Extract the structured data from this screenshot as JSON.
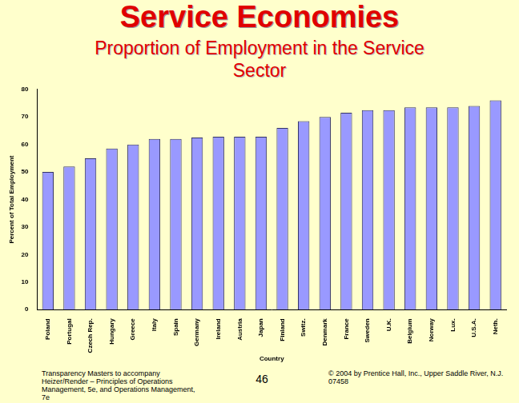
{
  "chart_data": {
    "type": "bar",
    "title": "Service Economies",
    "subtitle": "Proportion of Employment in the Service Sector",
    "x_label": "Country",
    "y_label": "Percent of Total Employment",
    "categories": [
      "Poland",
      "Portugal",
      "Czech Rep.",
      "Hungary",
      "Greece",
      "Italy",
      "Spain",
      "Germany",
      "Ireland",
      "Austria",
      "Japan",
      "Finland",
      "Switz.",
      "Denmark",
      "France",
      "Sweden",
      "U.K.",
      "Belgium",
      "Norway",
      "Lux.",
      "U.S.A.",
      "Neth."
    ],
    "values": [
      50,
      52,
      55,
      58.5,
      60,
      62,
      62,
      62.5,
      62.8,
      62.8,
      62.8,
      66,
      68.5,
      70,
      71.5,
      72.5,
      72.5,
      73.5,
      73.5,
      73.5,
      74,
      76
    ],
    "color": "#9999ff",
    "ylim": [
      0,
      80
    ],
    "yticks": [
      0,
      10,
      20,
      30,
      40,
      50,
      60,
      70,
      80
    ],
    "grid": false,
    "annotations": [
      "Transparency Masters to accompany Heizer/Render – Principles of Operations Management, 5e, and Operations Management, 7e",
      "46",
      "© 2004 by Prentice Hall, Inc., Upper Saddle River, N.J. 07458"
    ]
  }
}
